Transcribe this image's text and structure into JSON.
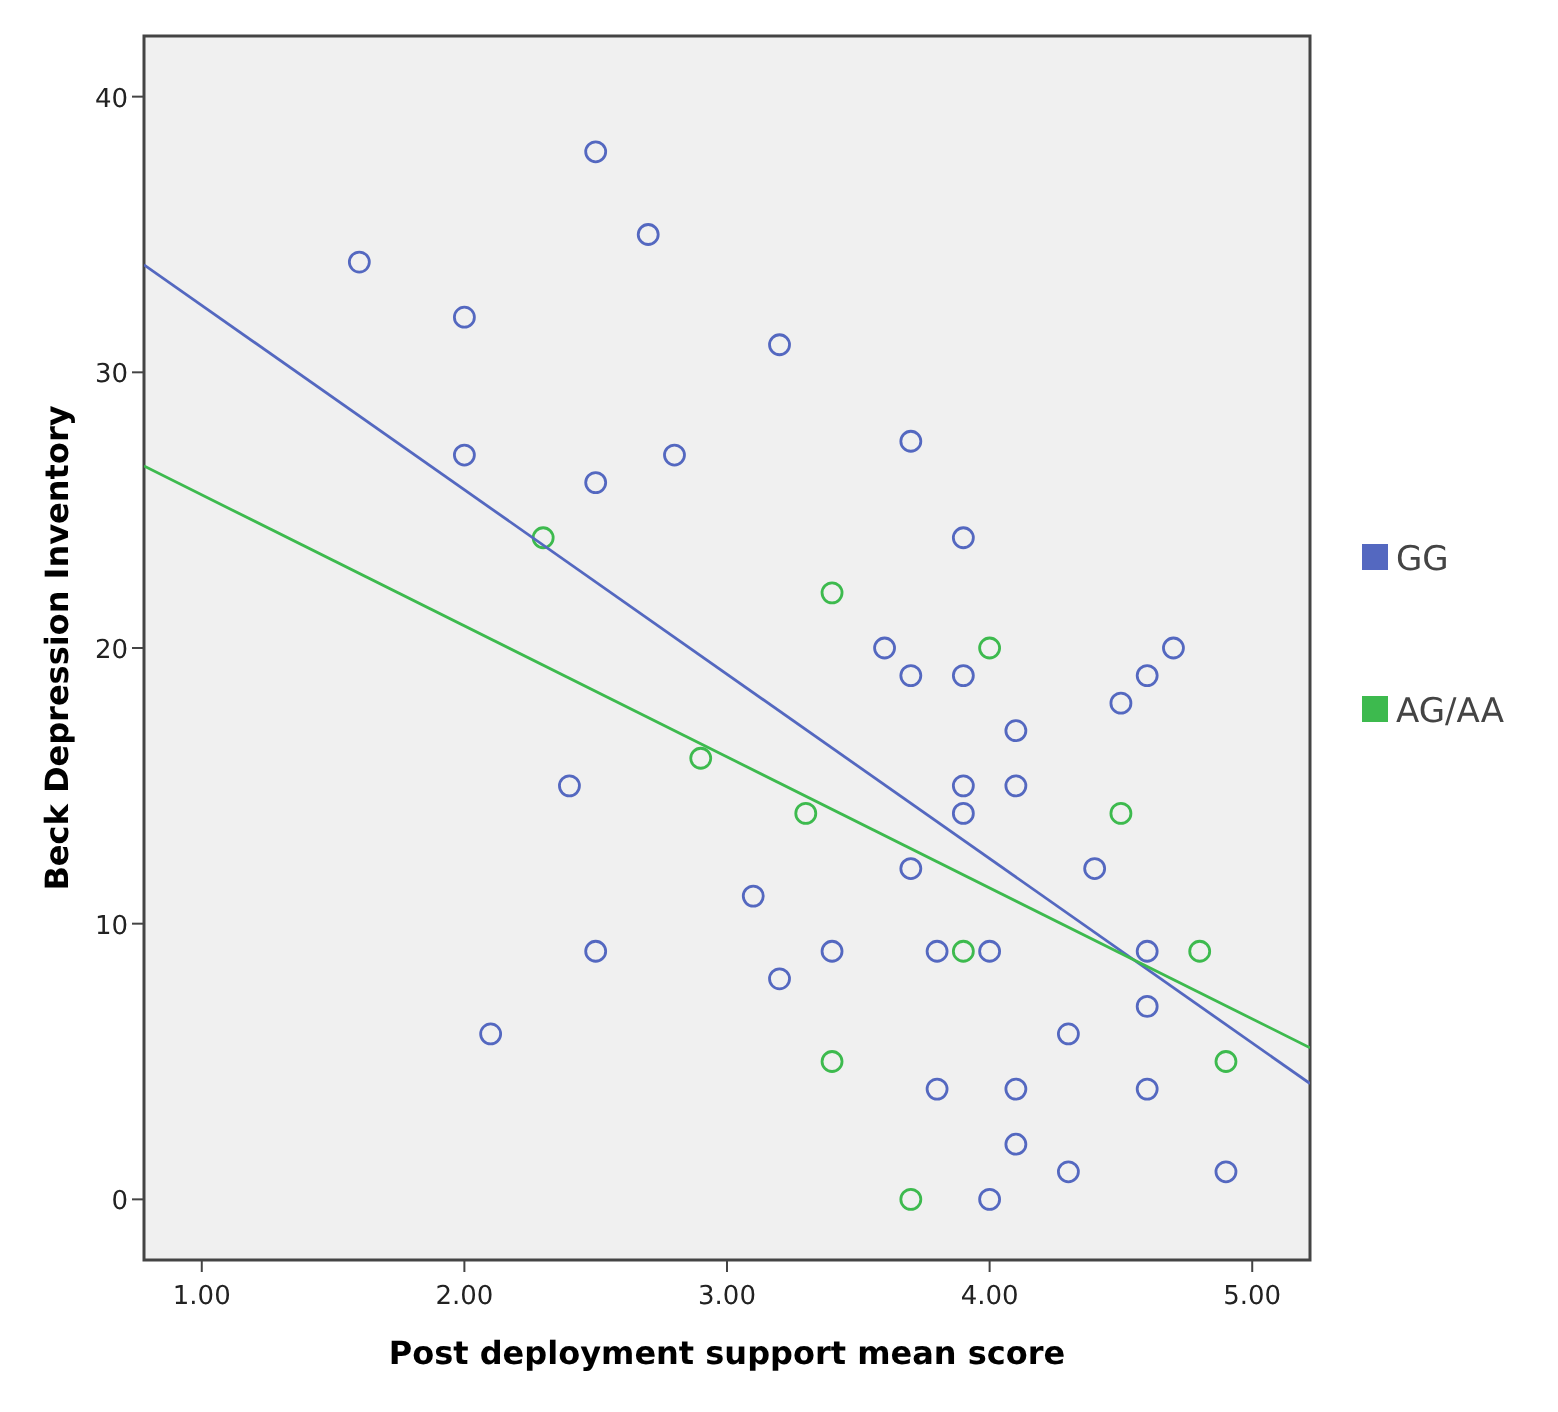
{
  "chart_data": {
    "type": "scatter",
    "xlabel": "Post deployment support mean score",
    "ylabel": "Beck Depression Inventory",
    "xlim": [
      0.78,
      5.22
    ],
    "xticks": [
      {
        "value": 1,
        "label": "1.00"
      },
      {
        "value": 2,
        "label": "2.00"
      },
      {
        "value": 3,
        "label": "3.00"
      },
      {
        "value": 4,
        "label": "4.00"
      },
      {
        "value": 5,
        "label": "5.00"
      }
    ],
    "ylim": [
      -2.2,
      42.2
    ],
    "yticks": [
      0,
      10,
      20,
      30,
      40
    ],
    "marker": "circle",
    "legend": "right",
    "grid": false,
    "series": [
      {
        "name": "GG",
        "color": "#5468c0",
        "x": [
          1.6,
          2.0,
          2.0,
          2.5,
          2.5,
          2.7,
          2.8,
          3.2,
          3.7,
          3.9,
          3.6,
          3.7,
          3.9,
          4.1,
          3.9,
          4.1,
          3.9,
          4.5,
          4.6,
          4.7,
          4.4,
          3.7,
          3.1,
          3.2,
          2.4,
          2.5,
          2.1,
          3.4,
          3.8,
          4.0,
          4.6,
          4.6,
          4.3,
          3.8,
          4.1,
          4.6,
          4.1,
          4.3,
          4.9,
          4.0
        ],
        "values": [
          34,
          32,
          27,
          38,
          26,
          35,
          27,
          31,
          27.5,
          24,
          20,
          19,
          19,
          17,
          15,
          15,
          14,
          18,
          19,
          20,
          12,
          12,
          11,
          8,
          15,
          9,
          6,
          9,
          9,
          9,
          9,
          7,
          6,
          4,
          4,
          4,
          2,
          1,
          1,
          0
        ]
      },
      {
        "name": "AG/AA",
        "color": "#3dba4e",
        "x": [
          2.3,
          3.4,
          4.0,
          2.9,
          3.3,
          4.5,
          3.9,
          4.8,
          3.4,
          4.9,
          3.7
        ],
        "values": [
          24,
          22,
          20,
          16,
          14,
          14,
          9,
          9,
          5,
          5,
          0
        ]
      },
      {
        "type": "line",
        "marker": "none",
        "color": "#5468c0",
        "x": [
          0.78,
          5.22
        ],
        "values": [
          33.9,
          4.2
        ]
      },
      {
        "type": "line",
        "marker": "none",
        "color": "#3dba4e",
        "x": [
          0.78,
          5.22
        ],
        "values": [
          26.6,
          5.5
        ]
      }
    ]
  }
}
